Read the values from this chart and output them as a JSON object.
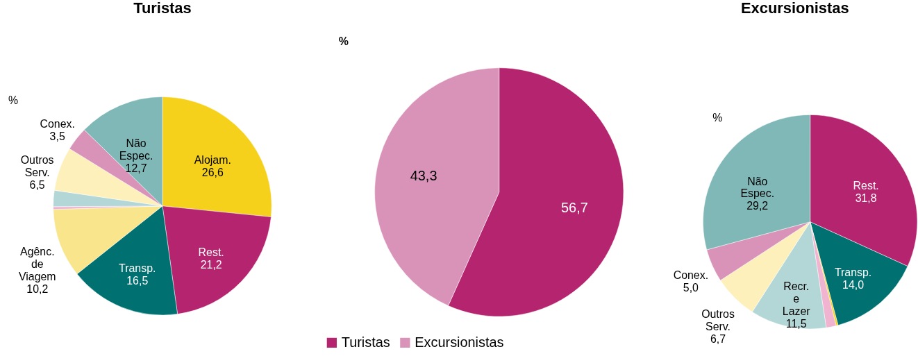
{
  "chart_data": [
    {
      "type": "pie",
      "title": "Turistas",
      "annotations": [
        "%"
      ],
      "categories": [
        "Alojam.",
        "Rest.",
        "Transp.",
        "Agênc. de Viagem",
        null,
        null,
        "Outros Serv.",
        "Conex.",
        "Não Espec."
      ],
      "values": [
        26.6,
        21.2,
        16.5,
        10.2,
        0.4,
        2.4,
        6.5,
        3.5,
        12.7
      ],
      "value_labels": [
        "26,6",
        "21,2",
        "16,5",
        "10,2",
        null,
        null,
        "6,5",
        "3,5",
        "12,7"
      ],
      "colors": [
        "#f5d11b",
        "#b5246e",
        "#007070",
        "#f8e58c",
        "#f0b4d0",
        "#b3d6d6",
        "#fdf0bb",
        "#d993b8",
        "#80b8b8"
      ],
      "legend": false
    },
    {
      "type": "pie",
      "annotations": [
        "%"
      ],
      "categories": [
        "Turistas",
        "Excursionistas"
      ],
      "values": [
        56.7,
        43.3
      ],
      "value_labels": [
        "56,7",
        "43,3"
      ],
      "colors": [
        "#b5246e",
        "#d993b8"
      ],
      "legend": "bottom"
    },
    {
      "type": "pie",
      "title": "Excursionistas",
      "annotations": [
        "%"
      ],
      "categories": [
        "Rest.",
        "Transp.",
        null,
        null,
        "Recr. e Lazer",
        "Outros Serv.",
        "Conex.",
        "Não Espec."
      ],
      "values": [
        31.8,
        14.0,
        0.3,
        1.5,
        11.5,
        6.7,
        5.0,
        29.2
      ],
      "value_labels": [
        "31,8",
        "14,0",
        null,
        null,
        "11,5",
        "6,7",
        "5,0",
        "29,2"
      ],
      "colors": [
        "#b5246e",
        "#007070",
        "#f5d11b",
        "#f0b4d0",
        "#b3d6d6",
        "#fdf0bb",
        "#d993b8",
        "#80b8b8"
      ],
      "legend": false
    }
  ]
}
